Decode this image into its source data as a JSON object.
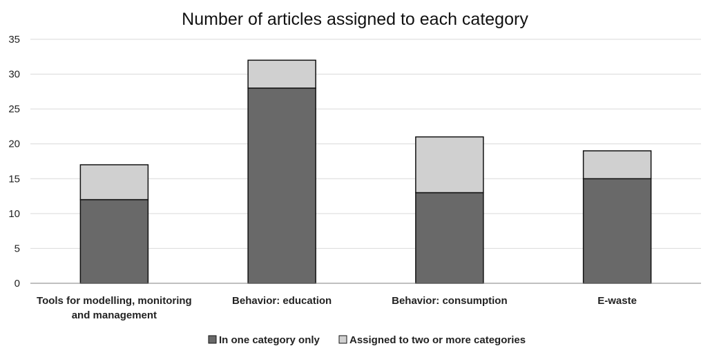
{
  "chart_data": {
    "type": "bar",
    "stacked": true,
    "title": "Number of articles assigned to each category",
    "xlabel": "",
    "ylabel": "",
    "ylim": [
      0,
      35
    ],
    "yticks": [
      0,
      5,
      10,
      15,
      20,
      25,
      30,
      35
    ],
    "grid": true,
    "legend_position": "bottom",
    "categories": [
      [
        "Tools for modelling, monitoring",
        "and management"
      ],
      [
        "Behavior: education"
      ],
      [
        "Behavior: consumption"
      ],
      [
        "E-waste"
      ]
    ],
    "series": [
      {
        "name": "In one category only",
        "values": [
          12,
          28,
          13,
          15
        ],
        "color": "#696969"
      },
      {
        "name": "Assigned to two or more categories",
        "values": [
          5,
          4,
          8,
          4
        ],
        "color": "#d0d0d0"
      }
    ]
  }
}
